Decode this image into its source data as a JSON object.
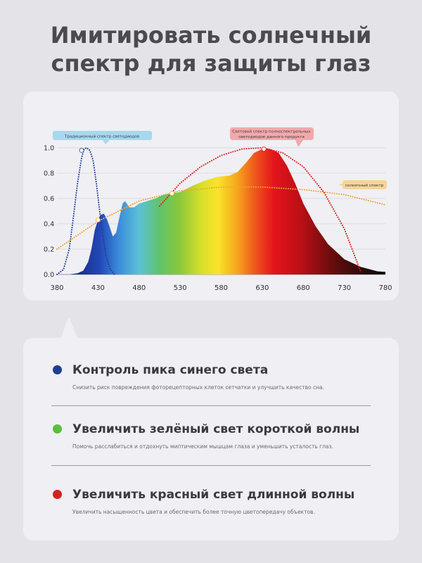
{
  "title": {
    "line1": "Имитировать солнечный",
    "line2": "спектр для защиты глаз"
  },
  "chart_data": {
    "type": "area",
    "x_ticks": [
      380,
      430,
      480,
      530,
      580,
      630,
      680,
      730,
      780
    ],
    "y_ticks": [
      "0.0",
      "0.2",
      "0.4",
      "0.6",
      "0.8",
      "1.0"
    ],
    "xlim": [
      380,
      780
    ],
    "ylim": [
      0,
      1.0
    ],
    "grid": true,
    "series": [
      {
        "name": "Световой спектр полноспектральных светодиодов данного продукта",
        "style": "filled rainbow area",
        "x": [
          380,
          395,
          405,
          412,
          418,
          422,
          426,
          430,
          433,
          437,
          440,
          444,
          448,
          452,
          456,
          460,
          463,
          468,
          474,
          480,
          490,
          500,
          510,
          520,
          530,
          545,
          560,
          575,
          590,
          600,
          610,
          620,
          630,
          635,
          640,
          650,
          660,
          670,
          680,
          695,
          710,
          730,
          750,
          770,
          780
        ],
        "y": [
          0.0,
          0.0,
          0.01,
          0.03,
          0.1,
          0.2,
          0.35,
          0.43,
          0.47,
          0.48,
          0.45,
          0.38,
          0.3,
          0.33,
          0.45,
          0.56,
          0.58,
          0.53,
          0.53,
          0.56,
          0.58,
          0.6,
          0.63,
          0.64,
          0.65,
          0.7,
          0.74,
          0.77,
          0.78,
          0.81,
          0.88,
          0.96,
          0.99,
          0.995,
          0.99,
          0.96,
          0.86,
          0.72,
          0.56,
          0.38,
          0.24,
          0.12,
          0.06,
          0.025,
          0.02
        ]
      },
      {
        "name": "Традиционный спектр светодиодов",
        "style": "dotted dark blue",
        "color": "#1f3f8f",
        "x": [
          380,
          388,
          395,
          400,
          405,
          410,
          413,
          416,
          420,
          424,
          428,
          432,
          436,
          440,
          445,
          450
        ],
        "y": [
          0.0,
          0.04,
          0.2,
          0.45,
          0.72,
          0.92,
          0.99,
          1.0,
          0.98,
          0.9,
          0.72,
          0.5,
          0.3,
          0.14,
          0.04,
          0.0
        ]
      },
      {
        "name": "солнечный спектр",
        "style": "dotted orange",
        "color": "#f0a530",
        "x": [
          380,
          430,
          480,
          530,
          580,
          630,
          680,
          730,
          780
        ],
        "y": [
          0.2,
          0.42,
          0.58,
          0.66,
          0.69,
          0.69,
          0.67,
          0.63,
          0.55
        ]
      },
      {
        "name": "red curve",
        "style": "dotted red",
        "color": "#d81e1e",
        "x": [
          505,
          530,
          555,
          580,
          605,
          630,
          655,
          680,
          705,
          730,
          750
        ],
        "y": [
          0.54,
          0.72,
          0.85,
          0.94,
          0.99,
          1.0,
          0.96,
          0.85,
          0.65,
          0.36,
          0.02
        ]
      }
    ],
    "markers": [
      {
        "series": "Традиционный спектр светодиодов",
        "x": 410,
        "y": 0.98
      },
      {
        "series": "солнечный спектр",
        "x": 430,
        "y": 0.43
      },
      {
        "series": "солнечный спектр",
        "x": 520,
        "y": 0.64
      },
      {
        "series": "red curve",
        "x": 632,
        "y": 0.99
      }
    ],
    "callouts": {
      "traditional": "Традиционный спектр светодиодов",
      "product_line1": "Световой спектр полноспектральных",
      "product_line2": "светодиодов данного продукта",
      "solar": "солнечный спектр"
    },
    "colors": {
      "blue_label_bg": "#a6d8ef",
      "red_label_bg": "#f3a9ab",
      "orange_label_bg": "#f7d39b"
    }
  },
  "features": [
    {
      "color": "#1f3f8f",
      "title": "Контроль пика синего света",
      "desc": "Снизить риск повреждения фоторецепторных клеток сетчатки и улучшить качество сна."
    },
    {
      "color": "#5cbd3c",
      "title": "Увеличить зелёный свет короткой волны",
      "desc": "Помочь расслабиться и отдохнуть миптическим мышцам глаза и уменьшить усталость глаз."
    },
    {
      "color": "#d82020",
      "title": "Увеличить красный свет длинной волны",
      "desc": "Увеличить насыщенность цвета и обеспечить более точную цветопередачу объектов."
    }
  ]
}
